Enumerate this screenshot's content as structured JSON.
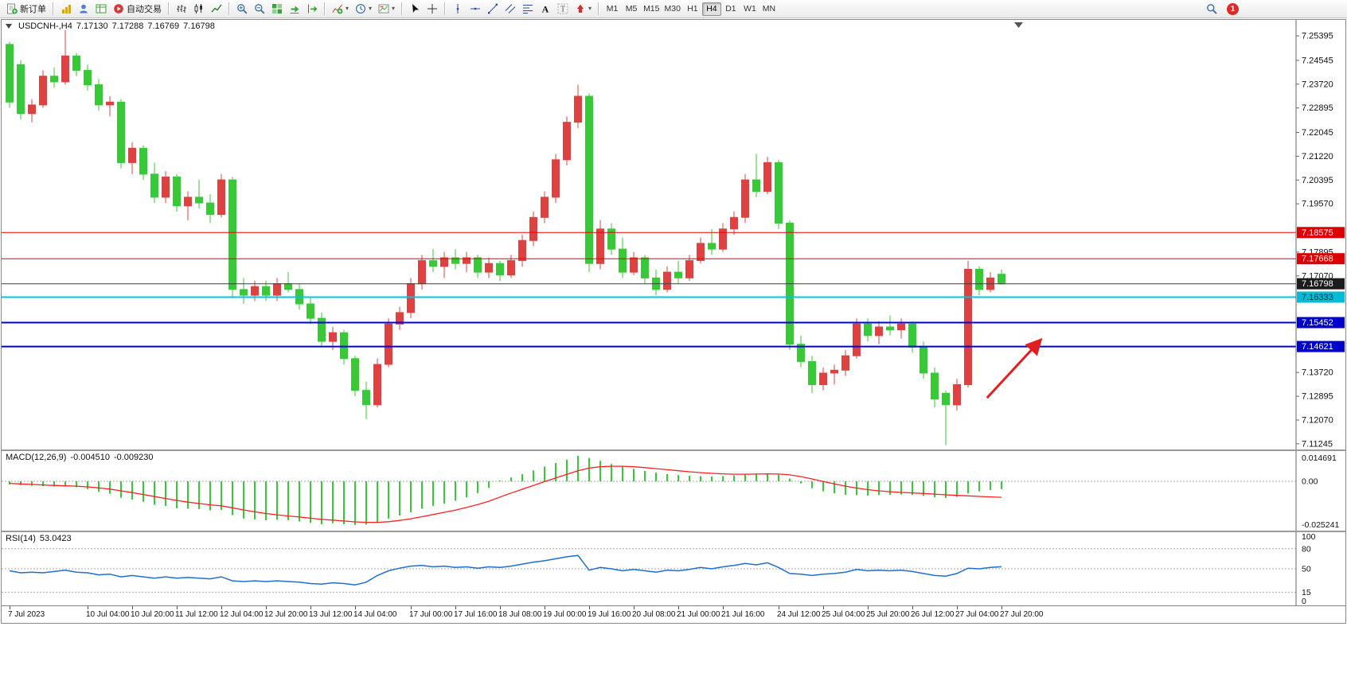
{
  "toolbar": {
    "groups": [
      {
        "items": [
          {
            "name": "new-order",
            "icon": "neworder",
            "label": "新订单"
          }
        ]
      },
      {
        "items": [
          {
            "name": "new-chart",
            "icon": "newchart"
          },
          {
            "name": "profiles",
            "icon": "profiles"
          },
          {
            "name": "data-window",
            "icon": "datawindow"
          },
          {
            "name": "auto-trading",
            "icon": "autotrade",
            "label": "自动交易"
          }
        ]
      },
      {
        "items": [
          {
            "name": "bar-chart-mode",
            "icon": "bars"
          },
          {
            "name": "candlestick-mode",
            "icon": "candles"
          },
          {
            "name": "line-chart-mode",
            "icon": "linechart"
          }
        ]
      },
      {
        "items": [
          {
            "name": "zoom-in",
            "icon": "zoomin"
          },
          {
            "name": "zoom-out",
            "icon": "zoomout"
          },
          {
            "name": "tile-windows",
            "icon": "tile"
          },
          {
            "name": "auto-scroll",
            "icon": "autoscroll"
          },
          {
            "name": "chart-shift",
            "icon": "chartshift"
          }
        ]
      },
      {
        "items": [
          {
            "name": "indicators",
            "icon": "indicators",
            "dropdown": true
          },
          {
            "name": "periods",
            "icon": "periods",
            "dropdown": true
          },
          {
            "name": "templates",
            "icon": "templates",
            "dropdown": true
          }
        ]
      },
      {
        "items": [
          {
            "name": "cursor",
            "icon": "cursor"
          },
          {
            "name": "crosshair",
            "icon": "crosshair"
          }
        ]
      },
      {
        "items": [
          {
            "name": "vertical-line",
            "icon": "vline"
          },
          {
            "name": "horizontal-line",
            "icon": "hline"
          },
          {
            "name": "trendline",
            "icon": "trendline"
          },
          {
            "name": "equidistant-channel",
            "icon": "channel"
          },
          {
            "name": "fibonacci",
            "icon": "fibo"
          },
          {
            "name": "text",
            "icon": "text"
          },
          {
            "name": "text-label",
            "icon": "label"
          },
          {
            "name": "arrows",
            "icon": "shapes",
            "dropdown": true
          }
        ]
      }
    ],
    "timeframes": [
      "M1",
      "M5",
      "M15",
      "M30",
      "H1",
      "H4",
      "D1",
      "W1",
      "MN"
    ],
    "active_timeframe": "H4",
    "notification_count": "1"
  },
  "chart": {
    "symbol_period": "USDCNH-,H4",
    "open": "7.17130",
    "high": "7.17288",
    "low": "7.16769",
    "close": "7.16798"
  },
  "chart_data": [
    {
      "type": "candlestick",
      "title": "USDCNH-,H4",
      "bull_color": "#df4040",
      "bear_color": "#38c938",
      "price_axis": {
        "min": 7.1105,
        "max": 7.2595,
        "ticks": [
          "7.25395",
          "7.24545",
          "7.23720",
          "7.22895",
          "7.22045",
          "7.21220",
          "7.20395",
          "7.19570",
          "7.17895",
          "7.17070",
          "7.13720",
          "7.12895",
          "7.12070",
          "7.11245"
        ]
      },
      "candles": [
        [
          7.251,
          7.252,
          7.229,
          7.231
        ],
        [
          7.244,
          7.2455,
          7.225,
          7.227
        ],
        [
          7.227,
          7.232,
          7.224,
          7.23
        ],
        [
          7.23,
          7.242,
          7.229,
          7.24
        ],
        [
          7.24,
          7.243,
          7.236,
          7.238
        ],
        [
          7.238,
          7.256,
          7.237,
          7.247
        ],
        [
          7.247,
          7.248,
          7.24,
          7.242
        ],
        [
          7.242,
          7.244,
          7.235,
          7.237
        ],
        [
          7.237,
          7.239,
          7.228,
          7.23
        ],
        [
          7.23,
          7.233,
          7.226,
          7.231
        ],
        [
          7.231,
          7.232,
          7.208,
          7.21
        ],
        [
          7.21,
          7.217,
          7.206,
          7.215
        ],
        [
          7.215,
          7.216,
          7.204,
          7.206
        ],
        [
          7.206,
          7.21,
          7.196,
          7.198
        ],
        [
          7.198,
          7.207,
          7.196,
          7.205
        ],
        [
          7.205,
          7.206,
          7.193,
          7.195
        ],
        [
          7.195,
          7.2,
          7.19,
          7.198
        ],
        [
          7.198,
          7.204,
          7.194,
          7.196
        ],
        [
          7.196,
          7.199,
          7.189,
          7.192
        ],
        [
          7.192,
          7.206,
          7.191,
          7.204
        ],
        [
          7.204,
          7.205,
          7.163,
          7.166
        ],
        [
          7.166,
          7.17,
          7.161,
          7.164
        ],
        [
          7.164,
          7.169,
          7.162,
          7.167
        ],
        [
          7.167,
          7.169,
          7.162,
          7.164
        ],
        [
          7.164,
          7.17,
          7.162,
          7.168
        ],
        [
          7.168,
          7.172,
          7.165,
          7.166
        ],
        [
          7.166,
          7.168,
          7.159,
          7.161
        ],
        [
          7.161,
          7.163,
          7.154,
          7.156
        ],
        [
          7.156,
          7.158,
          7.146,
          7.148
        ],
        [
          7.148,
          7.153,
          7.145,
          7.151
        ],
        [
          7.151,
          7.152,
          7.14,
          7.142
        ],
        [
          7.142,
          7.143,
          7.129,
          7.131
        ],
        [
          7.131,
          7.134,
          7.121,
          7.126
        ],
        [
          7.126,
          7.142,
          7.125,
          7.14
        ],
        [
          7.14,
          7.156,
          7.139,
          7.154
        ],
        [
          7.154,
          7.16,
          7.152,
          7.158
        ],
        [
          7.158,
          7.17,
          7.156,
          7.168
        ],
        [
          7.168,
          7.178,
          7.166,
          7.176
        ],
        [
          7.176,
          7.18,
          7.172,
          7.174
        ],
        [
          7.174,
          7.179,
          7.17,
          7.177
        ],
        [
          7.177,
          7.18,
          7.173,
          7.175
        ],
        [
          7.175,
          7.179,
          7.172,
          7.177
        ],
        [
          7.177,
          7.178,
          7.17,
          7.172
        ],
        [
          7.172,
          7.177,
          7.17,
          7.175
        ],
        [
          7.175,
          7.176,
          7.169,
          7.171
        ],
        [
          7.171,
          7.178,
          7.17,
          7.176
        ],
        [
          7.176,
          7.185,
          7.174,
          7.183
        ],
        [
          7.183,
          7.193,
          7.181,
          7.191
        ],
        [
          7.191,
          7.2,
          7.189,
          7.198
        ],
        [
          7.198,
          7.213,
          7.196,
          7.211
        ],
        [
          7.211,
          7.226,
          7.209,
          7.224
        ],
        [
          7.224,
          7.237,
          7.222,
          7.233
        ],
        [
          7.233,
          7.234,
          7.172,
          7.175
        ],
        [
          7.175,
          7.19,
          7.173,
          7.187
        ],
        [
          7.187,
          7.189,
          7.178,
          7.18
        ],
        [
          7.18,
          7.184,
          7.17,
          7.172
        ],
        [
          7.172,
          7.179,
          7.171,
          7.177
        ],
        [
          7.177,
          7.178,
          7.168,
          7.17
        ],
        [
          7.17,
          7.173,
          7.164,
          7.166
        ],
        [
          7.166,
          7.174,
          7.165,
          7.172
        ],
        [
          7.172,
          7.176,
          7.168,
          7.17
        ],
        [
          7.17,
          7.178,
          7.169,
          7.176
        ],
        [
          7.176,
          7.184,
          7.175,
          7.182
        ],
        [
          7.182,
          7.187,
          7.178,
          7.18
        ],
        [
          7.18,
          7.189,
          7.179,
          7.187
        ],
        [
          7.187,
          7.193,
          7.185,
          7.191
        ],
        [
          7.191,
          7.206,
          7.189,
          7.204
        ],
        [
          7.204,
          7.213,
          7.198,
          7.2
        ],
        [
          7.2,
          7.212,
          7.199,
          7.21
        ],
        [
          7.21,
          7.211,
          7.187,
          7.189
        ],
        [
          7.189,
          7.19,
          7.145,
          7.147
        ],
        [
          7.147,
          7.15,
          7.139,
          7.141
        ],
        [
          7.141,
          7.143,
          7.13,
          7.133
        ],
        [
          7.133,
          7.139,
          7.131,
          7.137
        ],
        [
          7.137,
          7.14,
          7.133,
          7.138
        ],
        [
          7.138,
          7.145,
          7.136,
          7.143
        ],
        [
          7.143,
          7.156,
          7.142,
          7.154
        ],
        [
          7.154,
          7.156,
          7.148,
          7.15
        ],
        [
          7.15,
          7.155,
          7.147,
          7.153
        ],
        [
          7.153,
          7.157,
          7.15,
          7.152
        ],
        [
          7.152,
          7.156,
          7.149,
          7.154
        ],
        [
          7.154,
          7.155,
          7.144,
          7.146
        ],
        [
          7.146,
          7.148,
          7.135,
          7.137
        ],
        [
          7.137,
          7.139,
          7.125,
          7.128
        ],
        [
          7.13,
          7.131,
          7.112,
          7.126
        ],
        [
          7.126,
          7.135,
          7.124,
          7.133
        ],
        [
          7.133,
          7.176,
          7.132,
          7.173
        ],
        [
          7.173,
          7.174,
          7.164,
          7.166
        ],
        [
          7.166,
          7.172,
          7.165,
          7.17
        ],
        [
          7.1713,
          7.1729,
          7.1677,
          7.168
        ]
      ],
      "hlines": [
        {
          "price": 7.18575,
          "color": "#ee0000",
          "width": 1
        },
        {
          "price": 7.17668,
          "color": "#ee0000",
          "width": 1
        },
        {
          "price": 7.16798,
          "color": "#3c3c3c",
          "width": 1
        },
        {
          "price": 7.16333,
          "color": "#00c4e4",
          "width": 2
        },
        {
          "price": 7.15452,
          "color": "#0000dd",
          "width": 2
        },
        {
          "price": 7.14621,
          "color": "#0000dd",
          "width": 2
        }
      ],
      "badges": [
        {
          "text": "7.18575",
          "bg": "#dd0000",
          "fg": "#ffffff"
        },
        {
          "text": "7.17668",
          "bg": "#dd0000",
          "fg": "#ffffff"
        },
        {
          "text": "7.16798",
          "bg": "#1c1c1c",
          "fg": "#ffffff"
        },
        {
          "text": "7.16333",
          "bg": "#00bcd8",
          "fg": "#00323c"
        },
        {
          "text": "7.15452",
          "bg": "#0000cd",
          "fg": "#ffffff"
        },
        {
          "text": "7.14621",
          "bg": "#0000cd",
          "fg": "#ffffff"
        }
      ],
      "annotation_arrow": {
        "from": {
          "i": 87.7,
          "price": 7.1284
        },
        "to": {
          "i": 93.1,
          "price": 7.1502
        },
        "color": "#e02020"
      },
      "time_labels": [
        {
          "text": "7 Jul 2023",
          "i": 0
        },
        {
          "text": "10 Jul 04:00",
          "i": 7
        },
        {
          "text": "10 Jul 20:00",
          "i": 11
        },
        {
          "text": "11 Jul 12:00",
          "i": 15
        },
        {
          "text": "12 Jul 04:00",
          "i": 19
        },
        {
          "text": "12 Jul 20:00",
          "i": 23
        },
        {
          "text": "13 Jul 12:00",
          "i": 27
        },
        {
          "text": "14 Jul 04:00",
          "i": 31
        },
        {
          "text": "17 Jul 00:00",
          "i": 36
        },
        {
          "text": "17 Jul 16:00",
          "i": 40
        },
        {
          "text": "18 Jul 08:00",
          "i": 44
        },
        {
          "text": "19 Jul 00:00",
          "i": 48
        },
        {
          "text": "19 Jul 16:00",
          "i": 52
        },
        {
          "text": "20 Jul 08:00",
          "i": 56
        },
        {
          "text": "21 Jul 00:00",
          "i": 60
        },
        {
          "text": "21 Jul 16:00",
          "i": 64
        },
        {
          "text": "24 Jul 12:00",
          "i": 69
        },
        {
          "text": "25 Jul 04:00",
          "i": 73
        },
        {
          "text": "25 Jul 20:00",
          "i": 77
        },
        {
          "text": "26 Jul 12:00",
          "i": 81
        },
        {
          "text": "27 Jul 04:00",
          "i": 85
        },
        {
          "text": "27 Jul 20:00",
          "i": 89
        }
      ]
    },
    {
      "type": "bar",
      "name": "MACD",
      "label": "MACD(12,26,9)",
      "main_value": "-0.004510",
      "signal_value": "-0.009230",
      "max": 0.014691,
      "min": -0.025241,
      "scale_labels": [
        "0.014691",
        "0.00",
        "-0.025241"
      ],
      "hist_color": "#38c938",
      "signal_color": "#ff2020",
      "histogram": [
        -0.0018,
        -0.0022,
        -0.0026,
        -0.0028,
        -0.003,
        -0.0028,
        -0.0035,
        -0.0045,
        -0.006,
        -0.0072,
        -0.0095,
        -0.0105,
        -0.0118,
        -0.0135,
        -0.0142,
        -0.0155,
        -0.0158,
        -0.016,
        -0.0168,
        -0.0165,
        -0.0195,
        -0.0215,
        -0.022,
        -0.0225,
        -0.0222,
        -0.0225,
        -0.0232,
        -0.024,
        -0.0248,
        -0.0242,
        -0.0248,
        -0.0252,
        -0.025,
        -0.0235,
        -0.0215,
        -0.0198,
        -0.0178,
        -0.0158,
        -0.0142,
        -0.0128,
        -0.0112,
        -0.0092,
        -0.0068,
        -0.0038,
        0.0005,
        0.0022,
        0.0042,
        0.0063,
        0.0085,
        0.0105,
        0.0125,
        0.0147,
        0.0135,
        0.0118,
        0.01,
        0.0085,
        0.0072,
        0.006,
        0.005,
        0.0042,
        0.0036,
        0.0032,
        0.003,
        0.0028,
        0.003,
        0.0034,
        0.004,
        0.0044,
        0.0046,
        0.0038,
        0.0015,
        -0.0012,
        -0.004,
        -0.0058,
        -0.007,
        -0.0078,
        -0.008,
        -0.0082,
        -0.008,
        -0.0078,
        -0.0076,
        -0.0078,
        -0.0084,
        -0.0092,
        -0.0096,
        -0.009,
        -0.007,
        -0.0058,
        -0.005,
        -0.0045
      ],
      "signal": [
        -0.0012,
        -0.0015,
        -0.0018,
        -0.0021,
        -0.0024,
        -0.0026,
        -0.0028,
        -0.0032,
        -0.0038,
        -0.0045,
        -0.0055,
        -0.0065,
        -0.0076,
        -0.0088,
        -0.0099,
        -0.011,
        -0.012,
        -0.0128,
        -0.0136,
        -0.0142,
        -0.0153,
        -0.0165,
        -0.0176,
        -0.0186,
        -0.0193,
        -0.02,
        -0.0206,
        -0.0213,
        -0.022,
        -0.0224,
        -0.0229,
        -0.0234,
        -0.0237,
        -0.0237,
        -0.0233,
        -0.0226,
        -0.0216,
        -0.0204,
        -0.0192,
        -0.0179,
        -0.0166,
        -0.0151,
        -0.0134,
        -0.0115,
        -0.0091,
        -0.0068,
        -0.0046,
        -0.0024,
        -0.0002,
        0.0019,
        0.004,
        0.0061,
        0.0076,
        0.0084,
        0.0087,
        0.0087,
        0.0084,
        0.0079,
        0.0073,
        0.0067,
        0.0061,
        0.0055,
        0.005,
        0.0046,
        0.0043,
        0.0041,
        0.0041,
        0.0042,
        0.0043,
        0.0042,
        0.0037,
        0.0027,
        0.0014,
        -0.0001,
        -0.0015,
        -0.0028,
        -0.0039,
        -0.0048,
        -0.0055,
        -0.006,
        -0.0064,
        -0.0067,
        -0.007,
        -0.0074,
        -0.0078,
        -0.0081,
        -0.0084,
        -0.0087,
        -0.009,
        -0.0092
      ]
    },
    {
      "type": "line",
      "name": "RSI",
      "label": "RSI(14)",
      "value": "53.0423",
      "color": "#1f6fd0",
      "levels": [
        80,
        50,
        15
      ],
      "scale_labels": [
        "100",
        "80",
        "50",
        "15",
        "0"
      ],
      "values": [
        47,
        44,
        45,
        44,
        46,
        48,
        45,
        44,
        41,
        42,
        38,
        40,
        38,
        36,
        38,
        36,
        37,
        36,
        35,
        38,
        32,
        31,
        32,
        31,
        32,
        31,
        30,
        28,
        27,
        29,
        28,
        26,
        30,
        40,
        47,
        51,
        54,
        55,
        53,
        54,
        52,
        53,
        51,
        53,
        52,
        54,
        57,
        60,
        62,
        65,
        68,
        70,
        48,
        52,
        50,
        47,
        49,
        47,
        45,
        48,
        47,
        49,
        52,
        50,
        53,
        55,
        58,
        56,
        59,
        52,
        43,
        42,
        40,
        42,
        43,
        45,
        49,
        47,
        48,
        47,
        48,
        46,
        43,
        40,
        39,
        43,
        51,
        50,
        52,
        53.04
      ]
    }
  ]
}
